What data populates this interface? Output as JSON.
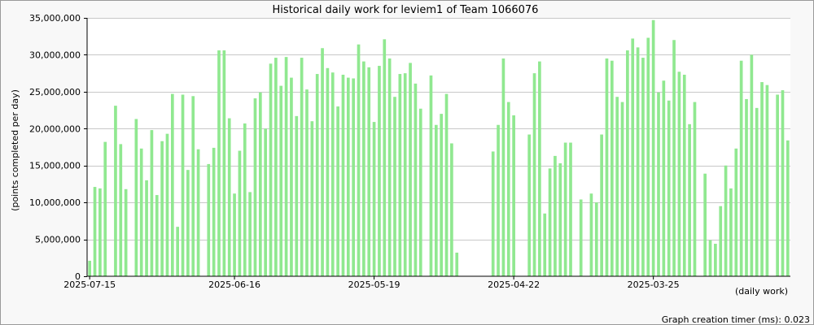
{
  "chart_data": {
    "type": "bar",
    "title": "Historical daily work for leviem1 of Team 1066076",
    "ylabel": "(points completed per day)",
    "xlabel": "(daily work)",
    "ylim": [
      0,
      35000000
    ],
    "yticks": [
      0,
      5000000,
      10000000,
      15000000,
      20000000,
      25000000,
      30000000,
      35000000
    ],
    "ytick_labels": [
      "0",
      "5,000,000",
      "10,000,000",
      "15,000,000",
      "20,000,000",
      "25,000,000",
      "30,000,000",
      "35,000,000"
    ],
    "xtick_labels": [
      "2025-07-15",
      "2025-06-16",
      "2025-05-19",
      "2025-04-22",
      "2025-03-25"
    ],
    "xtick_indices": [
      0,
      28,
      55,
      82,
      109
    ],
    "grid": true,
    "bar_color": "#90e890",
    "values": [
      2100000,
      12100000,
      11900000,
      18200000,
      0,
      23100000,
      17900000,
      11800000,
      0,
      21300000,
      17300000,
      13000000,
      19800000,
      11000000,
      18300000,
      19300000,
      24700000,
      6700000,
      24600000,
      14400000,
      24400000,
      17200000,
      0,
      15200000,
      17400000,
      30600000,
      30600000,
      21400000,
      11200000,
      17000000,
      20700000,
      11400000,
      24100000,
      24900000,
      20000000,
      28800000,
      29600000,
      25800000,
      29700000,
      26900000,
      21700000,
      29600000,
      25300000,
      21000000,
      27400000,
      30900000,
      28200000,
      27600000,
      23000000,
      27300000,
      26900000,
      26800000,
      31400000,
      29100000,
      28300000,
      20900000,
      28500000,
      32100000,
      29500000,
      24300000,
      27400000,
      27500000,
      28900000,
      26100000,
      22700000,
      0,
      27200000,
      20500000,
      22000000,
      24700000,
      18000000,
      3200000,
      0,
      0,
      0,
      0,
      0,
      0,
      16900000,
      20500000,
      29500000,
      23600000,
      21800000,
      0,
      0,
      19200000,
      27500000,
      29100000,
      8500000,
      14600000,
      16300000,
      15300000,
      18100000,
      18100000,
      0,
      10400000,
      0,
      11200000,
      10000000,
      19200000,
      29500000,
      29200000,
      24300000,
      23600000,
      30600000,
      32200000,
      31000000,
      29600000,
      32300000,
      34700000,
      24900000,
      26500000,
      23800000,
      32000000,
      27700000,
      27300000,
      20600000,
      23600000,
      0,
      13900000,
      4900000,
      4400000,
      9500000,
      15000000,
      11900000,
      17300000,
      29200000,
      24000000,
      30000000,
      22800000,
      26300000,
      25900000,
      0,
      24600000,
      25200000,
      18400000
    ]
  },
  "footer": {
    "timer_text": "Graph creation timer (ms): 0.023"
  }
}
